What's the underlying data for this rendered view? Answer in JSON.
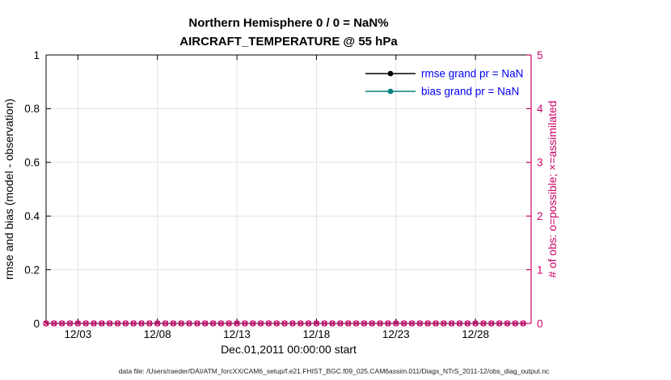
{
  "figure": {
    "footer": "data file: /Users/raeder/DAI/ATM_forcXX/CAM6_setup/f.e21.FHIST_BGC.f09_025.CAM6assim.011/Diags_NTrS_2011-12/obs_diag_output.nc"
  },
  "chart_data": {
    "type": "line",
    "title": "Northern Hemisphere 0 / 0 = NaN%",
    "subtitle": "AIRCRAFT_TEMPERATURE @ 55 hPa",
    "xlabel": "Dec.01,2011 00:00:00 start",
    "ylabel_left": "rmse and bias (model - observation)",
    "ylabel_right": "# of obs: o=possible; ×=assimilated",
    "x_unit": "days since 2011-12-01 00:00",
    "xlim": [
      0,
      30.5
    ],
    "x_ticks": [
      {
        "day": 2,
        "label": "12/03"
      },
      {
        "day": 7,
        "label": "12/08"
      },
      {
        "day": 12,
        "label": "12/13"
      },
      {
        "day": 17,
        "label": "12/18"
      },
      {
        "day": 22,
        "label": "12/23"
      },
      {
        "day": 27,
        "label": "12/28"
      }
    ],
    "ylim_left": [
      0,
      1
    ],
    "yticks_left": [
      {
        "value": 0,
        "label": "0"
      },
      {
        "value": 0.2,
        "label": "0.2"
      },
      {
        "value": 0.4,
        "label": "0.4"
      },
      {
        "value": 0.6,
        "label": "0.6"
      },
      {
        "value": 0.8,
        "label": "0.8"
      },
      {
        "value": 1,
        "label": "1"
      }
    ],
    "ylim_right": [
      0,
      5
    ],
    "yticks_right": [
      {
        "value": 0,
        "label": "0"
      },
      {
        "value": 1,
        "label": "1"
      },
      {
        "value": 2,
        "label": "2"
      },
      {
        "value": 3,
        "label": "3"
      },
      {
        "value": 4,
        "label": "4"
      },
      {
        "value": 5,
        "label": "5"
      }
    ],
    "grid": true,
    "legend": {
      "position": "top-right-inside",
      "box": false
    },
    "series": [
      {
        "name": "rmse grand pr = NaN",
        "color": "#000000",
        "values": []
      },
      {
        "name": "bias grand pr = NaN",
        "color": "#008080",
        "values": []
      }
    ],
    "obs_markers": {
      "possible_symbol": "o",
      "assimilated_symbol": "×",
      "value": 0,
      "days_start": 0,
      "days_end": 30,
      "step_days": 0.5,
      "possible_count": 0,
      "assimilated_count": 0
    },
    "colors": {
      "right_axis": "#cc0066",
      "legend_text": "#0000ee",
      "rmse": "#000000",
      "bias": "#008080",
      "grid": "#e2e2e2",
      "axis": "#000000",
      "background": "#ffffff"
    }
  }
}
